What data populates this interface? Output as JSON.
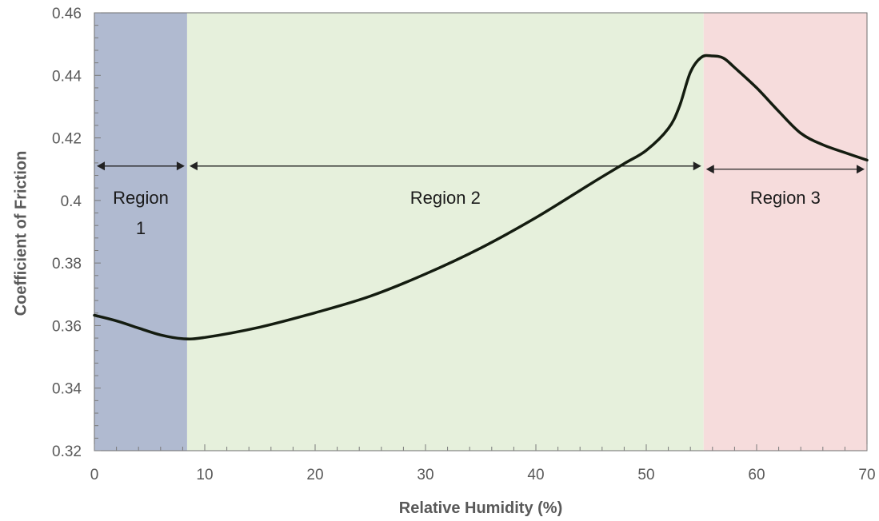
{
  "chart_data": {
    "type": "line",
    "title": "",
    "xlabel": "Relative Humidity (%)",
    "ylabel": "Coefficient  of Friction",
    "xlim": [
      0,
      70
    ],
    "ylim": [
      0.32,
      0.46
    ],
    "x_ticks": [
      0,
      10,
      20,
      30,
      40,
      50,
      60,
      70
    ],
    "x_tick_labels": [
      "0",
      "10",
      "20",
      "30",
      "40",
      "50",
      "60",
      "70"
    ],
    "y_ticks": [
      0.32,
      0.34,
      0.36,
      0.38,
      0.4,
      0.42,
      0.44,
      0.46
    ],
    "y_tick_labels": [
      "0.32",
      "0.34",
      "0.36",
      "0.38",
      "0.4",
      "0.42",
      "0.44",
      "0.46"
    ],
    "grid": false,
    "legend": "none",
    "regions": [
      {
        "label_lines": [
          "Region",
          "1"
        ],
        "x_start": 0,
        "x_end": 8.4,
        "color": "#b0bad0",
        "arrow_y": 0.411,
        "label_y": 0.4
      },
      {
        "label_lines": [
          "Region 2"
        ],
        "x_start": 8.4,
        "x_end": 55.2,
        "color": "#e6f0dc",
        "arrow_y": 0.411,
        "label_y": 0.4
      },
      {
        "label_lines": [
          "Region 3"
        ],
        "x_start": 55.2,
        "x_end": 70,
        "color": "#f6dcdc",
        "arrow_y": 0.41,
        "label_y": 0.4
      }
    ],
    "series": [
      {
        "color": "#141c10",
        "x": [
          0,
          2,
          4,
          6,
          8,
          10,
          15,
          20,
          25,
          30,
          35,
          40,
          45,
          48,
          50,
          52,
          53,
          54,
          55,
          56,
          57,
          58,
          60,
          62,
          64,
          66,
          68,
          70
        ],
        "y": [
          0.3633,
          0.3615,
          0.3592,
          0.357,
          0.3558,
          0.3562,
          0.3595,
          0.3641,
          0.3694,
          0.3765,
          0.3848,
          0.3945,
          0.4054,
          0.4118,
          0.416,
          0.423,
          0.43,
          0.441,
          0.4458,
          0.4462,
          0.4455,
          0.4425,
          0.436,
          0.4285,
          0.4215,
          0.4178,
          0.4153,
          0.4129
        ]
      }
    ]
  }
}
